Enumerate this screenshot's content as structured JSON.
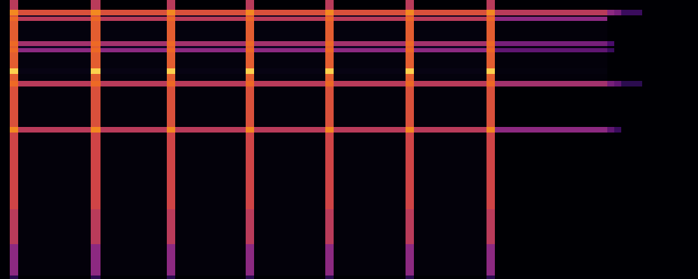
{
  "chart_data": {
    "type": "heatmap",
    "x": [
      0,
      14,
      26,
      130,
      144,
      239,
      251,
      352,
      364,
      466,
      478,
      581,
      593,
      697,
      709,
      870,
      880,
      890,
      920,
      1000
    ],
    "y": [
      0,
      5,
      50,
      100,
      210,
      218,
      276,
      284,
      294,
      302,
      325,
      331,
      334,
      341,
      370,
      376,
      378,
      386,
      400
    ],
    "z": [
      [
        0,
        0.25,
        0,
        0.25,
        0,
        0.25,
        0,
        0.25,
        0,
        0.25,
        0,
        0.25,
        0,
        0.25,
        0,
        0,
        0,
        0,
        0
      ],
      [
        0,
        0.5,
        0.02,
        0.5,
        0.02,
        0.5,
        0.02,
        0.5,
        0.02,
        0.5,
        0.02,
        0.5,
        0.02,
        0.5,
        0,
        0,
        0,
        0,
        0
      ],
      [
        0,
        0.6,
        0.02,
        0.6,
        0.02,
        0.6,
        0.02,
        0.6,
        0.02,
        0.6,
        0.02,
        0.6,
        0.02,
        0.6,
        0,
        0,
        0,
        0,
        0
      ],
      [
        0,
        0.65,
        0.02,
        0.65,
        0.02,
        0.65,
        0.02,
        0.65,
        0.02,
        0.65,
        0.02,
        0.65,
        0.02,
        0.65,
        0,
        0,
        0,
        0,
        0
      ],
      [
        0,
        0.85,
        0.6,
        0.85,
        0.6,
        0.85,
        0.6,
        0.85,
        0.6,
        0.85,
        0.6,
        0.85,
        0.6,
        0.85,
        0.5,
        0.4,
        0.3,
        0,
        0
      ],
      [
        0,
        0.7,
        0.02,
        0.7,
        0.02,
        0.7,
        0.02,
        0.7,
        0.02,
        0.7,
        0.02,
        0.7,
        0.02,
        0.7,
        0,
        0,
        0,
        0,
        0
      ],
      [
        0,
        0.8,
        0.6,
        0.8,
        0.6,
        0.8,
        0.6,
        0.8,
        0.6,
        0.8,
        0.6,
        0.8,
        0.6,
        0.8,
        0.55,
        0.45,
        0.4,
        0.25,
        0
      ],
      [
        0,
        0.75,
        0.03,
        0.75,
        0.03,
        0.75,
        0.03,
        0.75,
        0.03,
        0.75,
        0.03,
        0.75,
        0.03,
        0.75,
        0.02,
        0,
        0,
        0,
        0
      ],
      [
        0,
        0.95,
        0.05,
        0.95,
        0.05,
        0.95,
        0.05,
        0.95,
        0.05,
        0.95,
        0.05,
        0.95,
        0.05,
        0.95,
        0.03,
        0,
        0,
        0,
        0
      ],
      [
        0,
        0.75,
        0.03,
        0.75,
        0.03,
        0.75,
        0.03,
        0.75,
        0.03,
        0.75,
        0.03,
        0.75,
        0.03,
        0.75,
        0.02,
        0,
        0,
        0,
        0
      ],
      [
        0,
        0.8,
        0.5,
        0.8,
        0.5,
        0.8,
        0.5,
        0.8,
        0.5,
        0.8,
        0.5,
        0.8,
        0.5,
        0.8,
        0.4,
        0.3,
        0,
        0,
        0
      ],
      [
        0,
        0.75,
        0.1,
        0.75,
        0.1,
        0.75,
        0.1,
        0.75,
        0.1,
        0.75,
        0.1,
        0.75,
        0.1,
        0.75,
        0.05,
        0,
        0,
        0,
        0
      ],
      [
        0,
        0.8,
        0.55,
        0.8,
        0.55,
        0.8,
        0.55,
        0.8,
        0.55,
        0.8,
        0.55,
        0.8,
        0.55,
        0.8,
        0.45,
        0.35,
        0,
        0,
        0
      ],
      [
        0,
        0.75,
        0.03,
        0.75,
        0.03,
        0.75,
        0.03,
        0.75,
        0.03,
        0.75,
        0.03,
        0.75,
        0.03,
        0.75,
        0.02,
        0,
        0,
        0,
        0
      ],
      [
        0,
        0.8,
        0.6,
        0.8,
        0.6,
        0.8,
        0.6,
        0.8,
        0.6,
        0.8,
        0.6,
        0.8,
        0.6,
        0.8,
        0.5,
        0,
        0,
        0,
        0
      ],
      [
        0,
        0.7,
        0.1,
        0.7,
        0.1,
        0.7,
        0.1,
        0.7,
        0.1,
        0.7,
        0.1,
        0.7,
        0.1,
        0.7,
        0.05,
        0,
        0,
        0,
        0
      ],
      [
        0,
        0.85,
        0.7,
        0.85,
        0.7,
        0.85,
        0.7,
        0.85,
        0.7,
        0.85,
        0.7,
        0.85,
        0.7,
        0.85,
        0.6,
        0.5,
        0.45,
        0.3,
        0
      ],
      [
        0,
        0.6,
        0,
        0.6,
        0,
        0.6,
        0,
        0.6,
        0,
        0.6,
        0,
        0.6,
        0,
        0.6,
        0,
        0,
        0,
        0,
        0
      ]
    ],
    "zlim": [
      0,
      1
    ],
    "xlim": [
      0,
      1000
    ],
    "ylim": [
      0,
      400
    ],
    "tick_labels": false
  }
}
